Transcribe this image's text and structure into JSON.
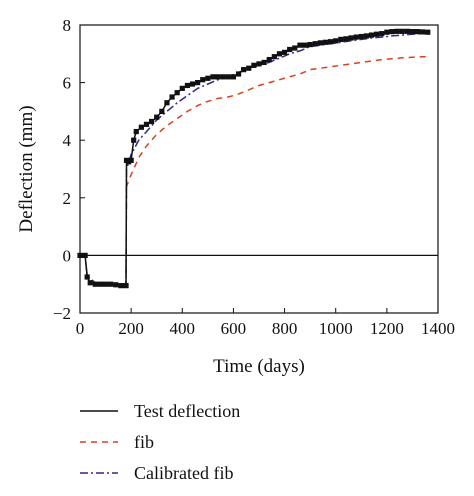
{
  "chart_data": {
    "type": "line",
    "title": "",
    "xlabel": "Time (days)",
    "ylabel": "Deflection (mm)",
    "xlim": [
      0,
      1400
    ],
    "ylim": [
      -2,
      8
    ],
    "xticks": [
      0,
      200,
      400,
      600,
      800,
      1000,
      1200,
      1400
    ],
    "yticks": [
      -2,
      0,
      2,
      4,
      6,
      8
    ],
    "xtick_labels": [
      "0",
      "200",
      "400",
      "600",
      "800",
      "1000",
      "1200",
      "1400"
    ],
    "ytick_labels": [
      "−2",
      "0",
      "2",
      "4",
      "6",
      "8"
    ],
    "zero_line": true,
    "grid": false,
    "legend_position": "below",
    "series": [
      {
        "name": "Test deflection",
        "color": "#111111",
        "style": "solid",
        "marker": "square",
        "x": [
          0,
          20,
          28,
          40,
          60,
          80,
          100,
          120,
          140,
          160,
          180,
          182,
          190,
          200,
          210,
          220,
          240,
          260,
          280,
          300,
          320,
          340,
          360,
          380,
          400,
          420,
          440,
          460,
          480,
          500,
          520,
          540,
          560,
          580,
          600,
          620,
          640,
          660,
          680,
          700,
          720,
          740,
          760,
          780,
          800,
          820,
          840,
          860,
          880,
          900,
          920,
          940,
          960,
          980,
          1000,
          1020,
          1040,
          1060,
          1080,
          1100,
          1120,
          1140,
          1160,
          1180,
          1200,
          1220,
          1240,
          1260,
          1280,
          1300,
          1320,
          1340,
          1360
        ],
        "y": [
          0,
          0,
          -0.75,
          -0.95,
          -1.0,
          -1.0,
          -1.0,
          -1.0,
          -1.02,
          -1.05,
          -1.05,
          3.3,
          3.25,
          3.3,
          4.0,
          4.3,
          4.45,
          4.55,
          4.65,
          4.8,
          5.0,
          5.3,
          5.5,
          5.65,
          5.8,
          5.9,
          5.95,
          6.0,
          6.1,
          6.15,
          6.2,
          6.2,
          6.2,
          6.2,
          6.2,
          6.3,
          6.45,
          6.5,
          6.6,
          6.65,
          6.7,
          6.8,
          6.9,
          7.0,
          7.05,
          7.15,
          7.2,
          7.3,
          7.3,
          7.32,
          7.35,
          7.38,
          7.4,
          7.42,
          7.45,
          7.5,
          7.52,
          7.55,
          7.58,
          7.6,
          7.62,
          7.65,
          7.68,
          7.7,
          7.75,
          7.77,
          7.78,
          7.78,
          7.78,
          7.77,
          7.77,
          7.76,
          7.75
        ]
      },
      {
        "name": "fib",
        "color": "#d9421a",
        "style": "dashed",
        "x": [
          0,
          20,
          28,
          60,
          100,
          140,
          180,
          182,
          200,
          230,
          260,
          300,
          340,
          380,
          420,
          460,
          500,
          540,
          580,
          620,
          660,
          700,
          740,
          780,
          820,
          860,
          900,
          940,
          980,
          1020,
          1060,
          1100,
          1140,
          1180,
          1220,
          1260,
          1300,
          1340,
          1360
        ],
        "y": [
          0,
          0,
          -0.7,
          -0.95,
          -1.0,
          -1.02,
          -1.05,
          2.4,
          2.8,
          3.4,
          3.8,
          4.2,
          4.5,
          4.75,
          5.0,
          5.2,
          5.35,
          5.45,
          5.5,
          5.6,
          5.75,
          5.9,
          6.0,
          6.1,
          6.2,
          6.3,
          6.45,
          6.5,
          6.55,
          6.6,
          6.65,
          6.7,
          6.75,
          6.8,
          6.83,
          6.86,
          6.88,
          6.9,
          6.9
        ]
      },
      {
        "name": "Calibrated fib",
        "color": "#2e2a8c",
        "style": "dashdot",
        "x": [
          0,
          20,
          28,
          60,
          100,
          140,
          180,
          182,
          200,
          230,
          260,
          300,
          340,
          380,
          420,
          460,
          500,
          540,
          580,
          620,
          660,
          700,
          740,
          780,
          820,
          860,
          900,
          940,
          980,
          1020,
          1060,
          1100,
          1140,
          1180,
          1220,
          1260,
          1300,
          1340,
          1360
        ],
        "y": [
          0,
          0,
          -0.72,
          -0.95,
          -1.0,
          -1.02,
          -1.05,
          3.0,
          3.5,
          4.0,
          4.3,
          4.7,
          5.0,
          5.3,
          5.55,
          5.8,
          5.95,
          6.1,
          6.2,
          6.35,
          6.5,
          6.6,
          6.7,
          6.85,
          7.0,
          7.1,
          7.25,
          7.3,
          7.35,
          7.4,
          7.45,
          7.5,
          7.55,
          7.58,
          7.62,
          7.65,
          7.68,
          7.7,
          7.7
        ]
      }
    ]
  }
}
